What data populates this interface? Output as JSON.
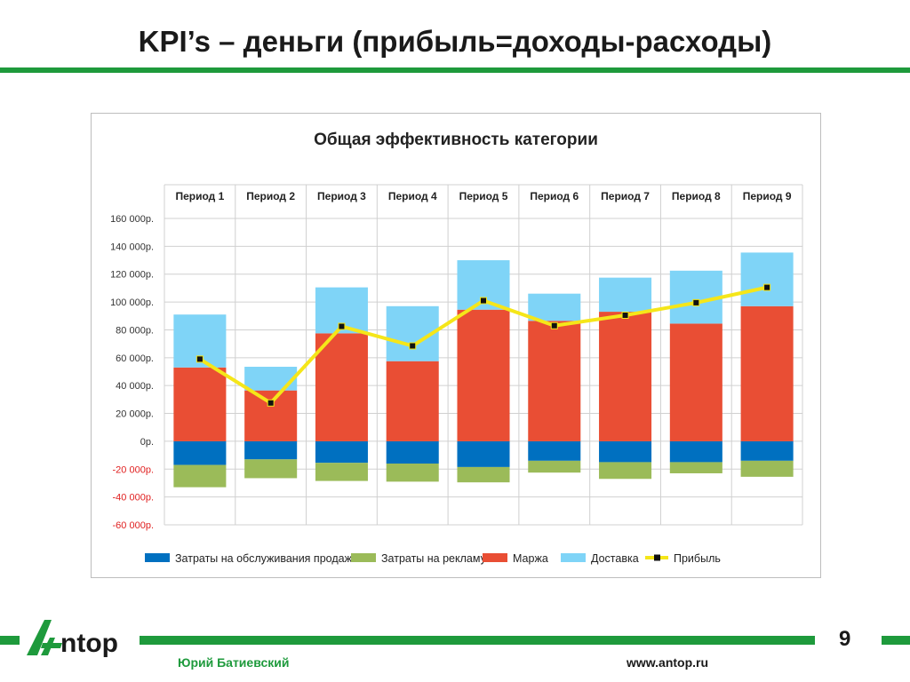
{
  "slide": {
    "title": "KPI’s – деньги (прибыль=доходы-расходы)",
    "page_number": "9",
    "author": "Юрий Батиевский",
    "website": "www.antop.ru",
    "logo_text": "Antop",
    "accent_color": "#1e9a3c"
  },
  "chart_data": {
    "type": "bar",
    "stacked": true,
    "title": "Общая эффективность категории",
    "categories": [
      "Период 1",
      "Период 2",
      "Период 3",
      "Период 4",
      "Период 5",
      "Период 6",
      "Период 7",
      "Период 8",
      "Период 9"
    ],
    "ylim": [
      -60000,
      160000
    ],
    "y_ticks": [
      160000,
      140000,
      120000,
      100000,
      80000,
      60000,
      40000,
      20000,
      0,
      -20000,
      -40000,
      -60000
    ],
    "y_tick_labels": [
      "160 000р.",
      "140 000р.",
      "120 000р.",
      "100 000р.",
      "80 000р.",
      "60 000р.",
      "40 000р.",
      "20 000р.",
      "0р.",
      "-20 000р.",
      "-40 000р.",
      "-60 000р."
    ],
    "grid": true,
    "legend_position": "bottom",
    "series": [
      {
        "name": "Затраты на обслуживания продаж",
        "type": "bar",
        "color": "#0070c0",
        "values": [
          -17000,
          -13000,
          -15500,
          -16000,
          -18500,
          -14000,
          -15000,
          -15000,
          -14000
        ]
      },
      {
        "name": "Затраты на рекламу",
        "type": "bar",
        "color": "#9bbb59",
        "values": [
          -16000,
          -13500,
          -13000,
          -13000,
          -11000,
          -8500,
          -12000,
          -8000,
          -11500
        ]
      },
      {
        "name": "Маржа",
        "type": "bar",
        "color": "#e94e34",
        "values": [
          53000,
          36500,
          77500,
          57500,
          94500,
          86500,
          93000,
          84500,
          97000
        ]
      },
      {
        "name": "Доставка",
        "type": "bar",
        "color": "#7fd4f7",
        "values": [
          38000,
          17000,
          33000,
          39500,
          35500,
          19500,
          24500,
          38000,
          38500
        ]
      },
      {
        "name": "Прибыль",
        "type": "line",
        "color": "#f5e619",
        "values": [
          59000,
          27500,
          82500,
          68500,
          101000,
          83000,
          90500,
          99500,
          110500
        ]
      }
    ]
  }
}
